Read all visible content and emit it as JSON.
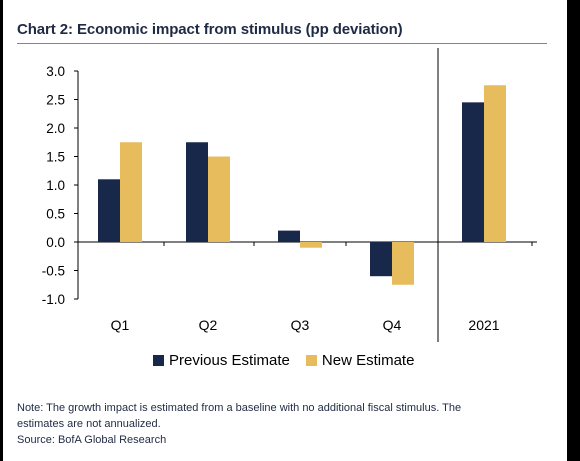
{
  "title": "Chart 2: Economic impact from stimulus (pp deviation)",
  "notes": {
    "line1": "Note: The growth impact is estimated from a baseline with no additional fiscal stimulus. The",
    "line2": "estimates are not annualized.",
    "source": "Source: BofA Global Research"
  },
  "colors": {
    "previous": "#18284a",
    "new": "#e6bc5c",
    "title_rule": "#6f87a8"
  },
  "chart_data": {
    "type": "bar",
    "title": "Chart 2: Economic impact from stimulus (pp deviation)",
    "xlabel": "",
    "ylabel": "",
    "categories": [
      "Q1",
      "Q2",
      "Q3",
      "Q4",
      "2021"
    ],
    "series": [
      {
        "name": "Previous Estimate",
        "values": [
          1.1,
          1.75,
          0.2,
          -0.6,
          2.45
        ]
      },
      {
        "name": "New Estimate",
        "values": [
          1.75,
          1.5,
          -0.1,
          -0.75,
          2.75
        ]
      }
    ],
    "ylim": [
      -1.0,
      3.0
    ],
    "yticks": [
      "3.0",
      "2.5",
      "2.0",
      "1.5",
      "1.0",
      "0.5",
      "0.0",
      "-0.5",
      "-1.0"
    ],
    "ytick_values": [
      3.0,
      2.5,
      2.0,
      1.5,
      1.0,
      0.5,
      0.0,
      -0.5,
      -1.0
    ],
    "separator_after_category": "Q4",
    "grid": false,
    "legend_position": "bottom"
  }
}
